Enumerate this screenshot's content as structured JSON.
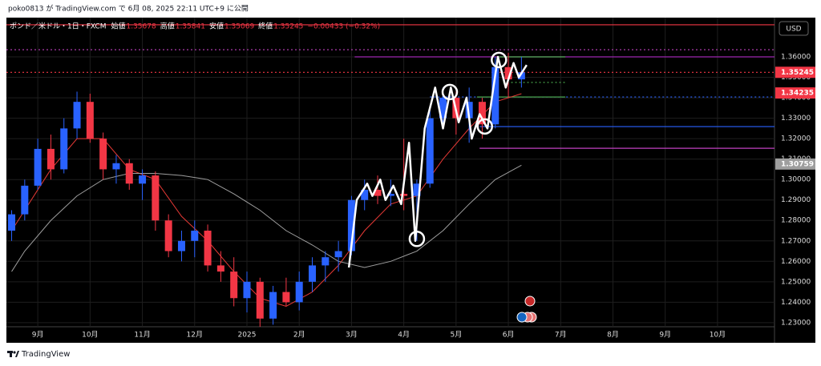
{
  "header": {
    "publisher": "poko0813 が TradingView.com で 6月 08, 2025 22:11 UTC+9 に公開"
  },
  "footer": {
    "brand": "TradingView"
  },
  "chart_data": {
    "type": "candlestick",
    "symbol": "ポンド／米ドル・1日・FXCM",
    "ohlc_legend": [
      {
        "label": "始値",
        "value": "1.35678"
      },
      {
        "label": "高値",
        "value": "1.35841"
      },
      {
        "label": "安値",
        "value": "1.35069"
      },
      {
        "label": "終値",
        "value": "1.35245"
      }
    ],
    "change": "−0.00433 (−0.32%)",
    "currency": "USD",
    "xlim": [
      0.4,
      15.09
    ],
    "xticks": [
      {
        "value": 1,
        "label": "9月"
      },
      {
        "value": 2,
        "label": "10月"
      },
      {
        "value": 3,
        "label": "11月"
      },
      {
        "value": 4,
        "label": "12月"
      },
      {
        "value": 5,
        "label": "2025"
      },
      {
        "value": 6,
        "label": "2月"
      },
      {
        "value": 7,
        "label": "3月"
      },
      {
        "value": 8,
        "label": "4月"
      },
      {
        "value": 9,
        "label": "5月"
      },
      {
        "value": 10,
        "label": "6月"
      },
      {
        "value": 11,
        "label": "7月"
      },
      {
        "value": 12,
        "label": "8月"
      },
      {
        "value": 13,
        "label": "9月"
      },
      {
        "value": 14,
        "label": "10月"
      }
    ],
    "ylim": [
      1.228,
      1.3792
    ],
    "yticks": [
      {
        "value": 1.23,
        "label": "1.23000"
      },
      {
        "value": 1.24,
        "label": "1.24000"
      },
      {
        "value": 1.25,
        "label": "1.25000"
      },
      {
        "value": 1.26,
        "label": "1.26000"
      },
      {
        "value": 1.27,
        "label": "1.27000"
      },
      {
        "value": 1.28,
        "label": "1.28000"
      },
      {
        "value": 1.29,
        "label": "1.29000"
      },
      {
        "value": 1.3,
        "label": "1.30000"
      },
      {
        "value": 1.31,
        "label": "1.31000"
      },
      {
        "value": 1.32,
        "label": "1.32000"
      },
      {
        "value": 1.33,
        "label": "1.33000"
      },
      {
        "value": 1.34,
        "label": "1.34000"
      },
      {
        "value": 1.35,
        "label": "1.35000"
      },
      {
        "value": 1.36,
        "label": "1.36000"
      }
    ],
    "grid": true,
    "up_color": "#2962ff",
    "down_color": "#f23645",
    "candles": {
      "x": [
        0.5,
        0.75,
        1,
        1.25,
        1.5,
        1.75,
        2,
        2.25,
        2.5,
        2.75,
        3,
        3.25,
        3.5,
        3.75,
        4,
        4.25,
        4.5,
        4.75,
        5,
        5.25,
        5.5,
        5.75,
        6,
        6.25,
        6.5,
        6.75,
        7,
        7.25,
        7.5,
        7.75,
        8,
        8.25,
        8.5,
        8.75,
        9,
        9.25,
        9.5,
        9.75,
        10,
        10.25
      ],
      "open": [
        1.275,
        1.283,
        1.297,
        1.315,
        1.305,
        1.325,
        1.338,
        1.32,
        1.305,
        1.308,
        1.298,
        1.302,
        1.28,
        1.265,
        1.27,
        1.275,
        1.258,
        1.255,
        1.242,
        1.25,
        1.232,
        1.245,
        1.24,
        1.25,
        1.258,
        1.262,
        1.265,
        1.29,
        1.295,
        1.292,
        1.293,
        1.292,
        1.298,
        1.33,
        1.34,
        1.33,
        1.338,
        1.327,
        1.355,
        1.349
      ],
      "high": [
        1.285,
        1.3,
        1.32,
        1.322,
        1.33,
        1.343,
        1.342,
        1.323,
        1.312,
        1.31,
        1.305,
        1.304,
        1.283,
        1.275,
        1.28,
        1.278,
        1.265,
        1.262,
        1.255,
        1.252,
        1.248,
        1.252,
        1.255,
        1.262,
        1.265,
        1.27,
        1.292,
        1.3,
        1.302,
        1.3,
        1.32,
        1.3,
        1.335,
        1.345,
        1.343,
        1.345,
        1.34,
        1.36,
        1.362,
        1.36
      ],
      "low": [
        1.27,
        1.28,
        1.295,
        1.3,
        1.303,
        1.32,
        1.318,
        1.3,
        1.298,
        1.295,
        1.29,
        1.275,
        1.262,
        1.26,
        1.262,
        1.255,
        1.25,
        1.238,
        1.235,
        1.228,
        1.229,
        1.238,
        1.236,
        1.245,
        1.25,
        1.255,
        1.263,
        1.285,
        1.288,
        1.287,
        1.285,
        1.27,
        1.296,
        1.325,
        1.322,
        1.318,
        1.32,
        1.325,
        1.34,
        1.345
      ],
      "close": [
        1.283,
        1.297,
        1.315,
        1.305,
        1.325,
        1.338,
        1.32,
        1.305,
        1.308,
        1.298,
        1.302,
        1.28,
        1.265,
        1.27,
        1.275,
        1.258,
        1.255,
        1.242,
        1.25,
        1.232,
        1.245,
        1.24,
        1.25,
        1.258,
        1.262,
        1.265,
        1.29,
        1.295,
        1.292,
        1.293,
        1.292,
        1.298,
        1.33,
        1.34,
        1.33,
        1.338,
        1.327,
        1.355,
        1.349,
        1.35245
      ]
    },
    "moving_averages": [
      {
        "color": "#e53935",
        "x": [
          0.5,
          0.75,
          1.25,
          1.75,
          2.25,
          2.75,
          3.25,
          3.75,
          4.25,
          4.75,
          5.25,
          5.75,
          6.25,
          6.75,
          7.25,
          7.75,
          8.25,
          8.75,
          9.25,
          9.75,
          10.25
        ],
        "values": [
          1.275,
          1.285,
          1.305,
          1.32,
          1.32,
          1.305,
          1.3,
          1.282,
          1.27,
          1.255,
          1.242,
          1.238,
          1.245,
          1.258,
          1.275,
          1.288,
          1.292,
          1.31,
          1.325,
          1.338,
          1.342
        ]
      },
      {
        "color": "#9e9e9e",
        "x": [
          0.5,
          0.75,
          1.25,
          1.75,
          2.25,
          2.75,
          3.25,
          3.75,
          4.25,
          4.75,
          5.25,
          5.75,
          6.25,
          6.75,
          7.25,
          7.75,
          8.25,
          8.75,
          9.25,
          9.75,
          10.25
        ],
        "values": [
          1.255,
          1.265,
          1.28,
          1.292,
          1.3,
          1.303,
          1.303,
          1.302,
          1.3,
          1.293,
          1.285,
          1.275,
          1.268,
          1.26,
          1.257,
          1.26,
          1.265,
          1.275,
          1.288,
          1.3,
          1.307
        ]
      }
    ],
    "drawing": {
      "color": "#ffffff",
      "x": [
        6.95,
        7.1,
        7.3,
        7.4,
        7.55,
        7.65,
        7.8,
        7.95,
        8.1,
        8.22,
        8.4,
        8.6,
        8.75,
        8.9,
        9.05,
        9.2,
        9.3,
        9.45,
        9.6,
        9.8,
        9.95,
        10.1,
        10.2,
        10.35
      ],
      "values": [
        1.257,
        1.29,
        1.298,
        1.292,
        1.3,
        1.29,
        1.297,
        1.288,
        1.318,
        1.27,
        1.325,
        1.345,
        1.325,
        1.345,
        1.328,
        1.34,
        1.32,
        1.332,
        1.325,
        1.36,
        1.345,
        1.357,
        1.35,
        1.356
      ]
    },
    "circles": {
      "color": "#ffffff",
      "x": [
        8.25,
        8.88,
        9.55,
        9.82
      ],
      "values": [
        1.271,
        1.3428,
        1.326,
        1.3585
      ]
    },
    "levels": [
      {
        "value": 1.3757,
        "color": "#f23645",
        "dash": false,
        "x0": 0.4,
        "x1": 15.09
      },
      {
        "value": 1.3635,
        "color": "#c040c0",
        "dash": true,
        "x0": 0.4,
        "x1": 15.09
      },
      {
        "value": 1.35245,
        "color": "#f23645",
        "dash": true,
        "x0": 0.4,
        "x1": 15.09
      },
      {
        "value": 1.36,
        "color": "#9c27b0",
        "dash": false,
        "x0": 7.06,
        "x1": 15.09
      },
      {
        "value": 1.36,
        "color": "#4caf50",
        "dash": false,
        "x0": 9.79,
        "x1": 11.09
      },
      {
        "value": 1.3475,
        "color": "#4caf50",
        "dash": true,
        "x0": 9.9,
        "x1": 11.09
      },
      {
        "value": 1.3404,
        "color": "#2962ff",
        "dash": true,
        "x0": 8.5,
        "x1": 15.09
      },
      {
        "value": 1.3404,
        "color": "#4caf50",
        "dash": false,
        "x0": 9.4,
        "x1": 11.09
      },
      {
        "value": 1.3259,
        "color": "#2962ff",
        "dash": false,
        "x0": 9.45,
        "x1": 15.09
      },
      {
        "value": 1.3153,
        "color": "#c040c0",
        "dash": false,
        "x0": 9.45,
        "x1": 15.09
      }
    ],
    "badges": [
      {
        "value": 1.35245,
        "label": "1.35245",
        "color": "#f23645"
      },
      {
        "value": 1.34235,
        "label": "1.34235",
        "color": "#f23645"
      },
      {
        "value": 1.30759,
        "label": "1.30759",
        "color": "#9e9e9e"
      }
    ]
  }
}
